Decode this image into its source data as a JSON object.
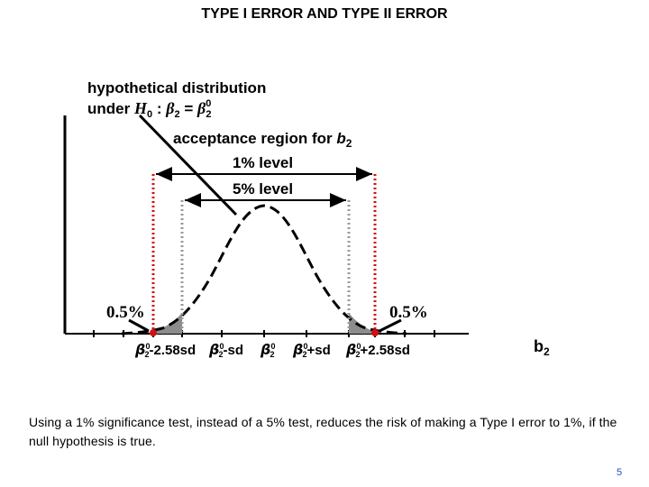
{
  "title": "TYPE I ERROR AND TYPE II ERROR",
  "hypothesis": {
    "line1": "hypothetical distribution",
    "line2_prefix": "under",
    "h": "H",
    "h_sub": "0",
    "colon": ":",
    "beta": "β",
    "beta_sub": "2",
    "equals": "=",
    "beta0": "β",
    "beta0_sup": "0",
    "beta0_sub": "2"
  },
  "acceptance": {
    "text": "acceptance region for",
    "var": "b",
    "var_sub": "2",
    "level_1": "1% level",
    "level_5": "5% level"
  },
  "tails": {
    "left": "0.5%",
    "right": "0.5%"
  },
  "ticks": [
    {
      "beta": "β",
      "sup": "0",
      "sub": "2",
      "suffix": "-2.58sd"
    },
    {
      "beta": "β",
      "sup": "0",
      "sub": "2",
      "suffix": "-sd"
    },
    {
      "beta": "β",
      "sup": "0",
      "sub": "2",
      "suffix": ""
    },
    {
      "beta": "β",
      "sup": "0",
      "sub": "2",
      "suffix": "+sd"
    },
    {
      "beta": "β",
      "sup": "0",
      "sub": "2",
      "suffix": "+2.58sd"
    }
  ],
  "axis_label": {
    "var": "b",
    "sub": "2"
  },
  "caption": "Using a 1% significance test, instead of a 5% test, reduces the risk of making a Type I error to 1%, if the null hypothesis is true.",
  "page_number": "5",
  "colors": {
    "critical_1pct": "#d01010",
    "critical_5pct": "#999999",
    "tail_fill": "#8c8c8c",
    "page_number": "#1f4fd1"
  }
}
